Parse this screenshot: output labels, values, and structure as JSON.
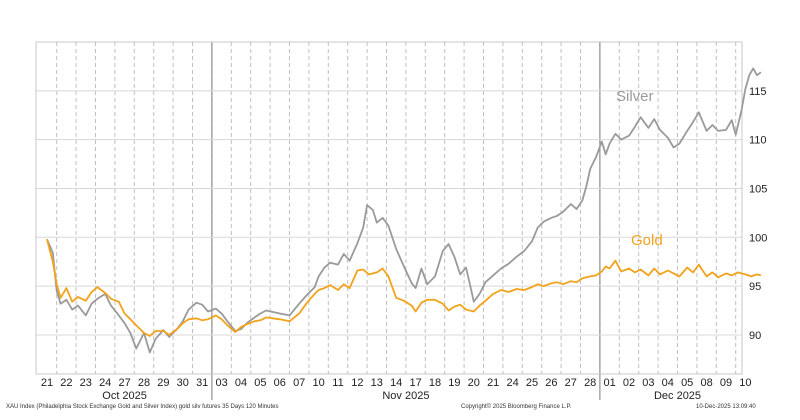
{
  "chart_data": {
    "type": "line",
    "ylim": [
      86,
      120
    ],
    "yticks": [
      90,
      95,
      100,
      105,
      110,
      115
    ],
    "grid": true,
    "legend": "inline",
    "x_days": [
      "21",
      "22",
      "23",
      "24",
      "27",
      "28",
      "29",
      "30",
      "31",
      "03",
      "04",
      "05",
      "06",
      "07",
      "10",
      "11",
      "12",
      "13",
      "14",
      "17",
      "18",
      "19",
      "20",
      "21",
      "24",
      "25",
      "26",
      "27",
      "28",
      "01",
      "02",
      "03",
      "04",
      "05",
      "08",
      "09",
      "10"
    ],
    "month_labels": [
      {
        "label": "Oct 2025",
        "first_day_index": 0,
        "last_day_index": 8
      },
      {
        "label": "Nov 2025",
        "first_day_index": 9,
        "last_day_index": 28
      },
      {
        "label": "Dec 2025",
        "first_day_index": 29,
        "last_day_index": 36
      }
    ],
    "series": [
      {
        "name": "Silver",
        "color": "#9a9a9a",
        "points": [
          [
            0,
            99.8
          ],
          [
            0.3,
            98.4
          ],
          [
            0.5,
            94.5
          ],
          [
            0.7,
            93.2
          ],
          [
            1.0,
            93.6
          ],
          [
            1.3,
            92.6
          ],
          [
            1.6,
            93.0
          ],
          [
            2.0,
            92.0
          ],
          [
            2.3,
            93.2
          ],
          [
            2.6,
            93.7
          ],
          [
            3.0,
            94.2
          ],
          [
            3.3,
            93.0
          ],
          [
            3.7,
            92.0
          ],
          [
            4.0,
            91.2
          ],
          [
            4.3,
            90.2
          ],
          [
            4.6,
            88.6
          ],
          [
            5.0,
            90.2
          ],
          [
            5.3,
            88.2
          ],
          [
            5.6,
            89.6
          ],
          [
            6.0,
            90.5
          ],
          [
            6.3,
            89.8
          ],
          [
            6.7,
            90.6
          ],
          [
            7.0,
            91.4
          ],
          [
            7.3,
            92.6
          ],
          [
            7.7,
            93.3
          ],
          [
            8.0,
            93.1
          ],
          [
            8.3,
            92.4
          ],
          [
            8.7,
            92.7
          ],
          [
            9.0,
            92.2
          ],
          [
            9.3,
            91.4
          ],
          [
            9.7,
            90.4
          ],
          [
            10.0,
            90.6
          ],
          [
            10.3,
            91.2
          ],
          [
            10.7,
            91.8
          ],
          [
            11.0,
            92.2
          ],
          [
            11.3,
            92.5
          ],
          [
            12.0,
            92.2
          ],
          [
            12.5,
            92.0
          ],
          [
            13.0,
            93.2
          ],
          [
            13.4,
            94.1
          ],
          [
            13.8,
            94.9
          ],
          [
            14.0,
            96.0
          ],
          [
            14.3,
            96.9
          ],
          [
            14.6,
            97.4
          ],
          [
            15.0,
            97.2
          ],
          [
            15.3,
            98.3
          ],
          [
            15.6,
            97.6
          ],
          [
            16.0,
            99.4
          ],
          [
            16.3,
            101.0
          ],
          [
            16.5,
            103.3
          ],
          [
            16.8,
            102.8
          ],
          [
            17.0,
            101.5
          ],
          [
            17.3,
            102.0
          ],
          [
            17.6,
            101.2
          ],
          [
            18.0,
            98.8
          ],
          [
            18.4,
            97.0
          ],
          [
            18.8,
            95.3
          ],
          [
            19.0,
            94.8
          ],
          [
            19.3,
            96.8
          ],
          [
            19.6,
            95.2
          ],
          [
            20.0,
            96.0
          ],
          [
            20.4,
            98.6
          ],
          [
            20.7,
            99.3
          ],
          [
            21.0,
            98.0
          ],
          [
            21.3,
            96.2
          ],
          [
            21.6,
            96.9
          ],
          [
            21.8,
            95.2
          ],
          [
            22.0,
            93.4
          ],
          [
            22.3,
            94.2
          ],
          [
            22.6,
            95.4
          ],
          [
            23.0,
            96.1
          ],
          [
            23.4,
            96.8
          ],
          [
            23.8,
            97.3
          ],
          [
            24.2,
            98.0
          ],
          [
            24.6,
            98.6
          ],
          [
            25.0,
            99.6
          ],
          [
            25.3,
            101.0
          ],
          [
            25.6,
            101.6
          ],
          [
            26.0,
            102.0
          ],
          [
            26.3,
            102.2
          ],
          [
            26.6,
            102.6
          ],
          [
            27.0,
            103.4
          ],
          [
            27.3,
            102.9
          ],
          [
            27.6,
            103.8
          ],
          [
            27.8,
            105.2
          ],
          [
            28.0,
            107.0
          ],
          [
            28.3,
            108.2
          ],
          [
            28.6,
            109.8
          ],
          [
            28.8,
            108.5
          ],
          [
            29.0,
            109.6
          ],
          [
            29.3,
            110.6
          ],
          [
            29.6,
            110.0
          ],
          [
            30.0,
            110.4
          ],
          [
            30.3,
            111.3
          ],
          [
            30.6,
            112.3
          ],
          [
            31.0,
            111.2
          ],
          [
            31.3,
            112.1
          ],
          [
            31.6,
            111.0
          ],
          [
            32.0,
            110.2
          ],
          [
            32.3,
            109.2
          ],
          [
            32.6,
            109.6
          ],
          [
            33.0,
            110.9
          ],
          [
            33.3,
            111.8
          ],
          [
            33.6,
            112.8
          ],
          [
            34.0,
            110.9
          ],
          [
            34.3,
            111.5
          ],
          [
            34.6,
            110.9
          ],
          [
            35.0,
            111.0
          ],
          [
            35.3,
            112.0
          ],
          [
            35.5,
            110.5
          ],
          [
            35.8,
            113.0
          ],
          [
            36.0,
            115.2
          ],
          [
            36.2,
            116.6
          ],
          [
            36.4,
            117.3
          ],
          [
            36.6,
            116.6
          ],
          [
            36.8,
            116.9
          ]
        ]
      },
      {
        "name": "Gold",
        "color": "#f2a21b",
        "points": [
          [
            0,
            99.8
          ],
          [
            0.3,
            97.5
          ],
          [
            0.5,
            95.2
          ],
          [
            0.7,
            93.8
          ],
          [
            1.0,
            94.8
          ],
          [
            1.3,
            93.4
          ],
          [
            1.6,
            93.9
          ],
          [
            2.0,
            93.5
          ],
          [
            2.3,
            94.4
          ],
          [
            2.6,
            94.9
          ],
          [
            3.0,
            94.3
          ],
          [
            3.3,
            93.7
          ],
          [
            3.7,
            93.4
          ],
          [
            4.0,
            92.2
          ],
          [
            4.3,
            91.6
          ],
          [
            4.6,
            91.0
          ],
          [
            5.0,
            90.2
          ],
          [
            5.3,
            89.9
          ],
          [
            5.6,
            90.4
          ],
          [
            6.0,
            90.4
          ],
          [
            6.3,
            90.0
          ],
          [
            6.7,
            90.6
          ],
          [
            7.0,
            91.2
          ],
          [
            7.3,
            91.6
          ],
          [
            7.7,
            91.7
          ],
          [
            8.0,
            91.5
          ],
          [
            8.3,
            91.6
          ],
          [
            8.7,
            92.0
          ],
          [
            9.0,
            91.6
          ],
          [
            9.3,
            91.0
          ],
          [
            9.7,
            90.3
          ],
          [
            10.0,
            90.8
          ],
          [
            10.3,
            91.1
          ],
          [
            10.7,
            91.4
          ],
          [
            11.0,
            91.5
          ],
          [
            11.3,
            91.8
          ],
          [
            12.0,
            91.6
          ],
          [
            12.5,
            91.4
          ],
          [
            13.0,
            92.2
          ],
          [
            13.4,
            93.3
          ],
          [
            13.8,
            94.2
          ],
          [
            14.0,
            94.6
          ],
          [
            14.3,
            94.8
          ],
          [
            14.6,
            95.1
          ],
          [
            15.0,
            94.6
          ],
          [
            15.3,
            95.2
          ],
          [
            15.6,
            94.8
          ],
          [
            16.0,
            96.6
          ],
          [
            16.3,
            96.7
          ],
          [
            16.6,
            96.2
          ],
          [
            17.0,
            96.4
          ],
          [
            17.3,
            96.8
          ],
          [
            17.6,
            96.0
          ],
          [
            18.0,
            93.8
          ],
          [
            18.4,
            93.5
          ],
          [
            18.8,
            93.0
          ],
          [
            19.0,
            92.4
          ],
          [
            19.3,
            93.3
          ],
          [
            19.6,
            93.6
          ],
          [
            20.0,
            93.6
          ],
          [
            20.4,
            93.2
          ],
          [
            20.7,
            92.5
          ],
          [
            21.0,
            92.9
          ],
          [
            21.3,
            93.1
          ],
          [
            21.6,
            92.6
          ],
          [
            22.0,
            92.4
          ],
          [
            22.3,
            93.0
          ],
          [
            22.6,
            93.5
          ],
          [
            23.0,
            94.2
          ],
          [
            23.4,
            94.6
          ],
          [
            23.8,
            94.4
          ],
          [
            24.2,
            94.7
          ],
          [
            24.6,
            94.6
          ],
          [
            25.0,
            94.9
          ],
          [
            25.3,
            95.2
          ],
          [
            25.6,
            95.0
          ],
          [
            26.0,
            95.3
          ],
          [
            26.3,
            95.4
          ],
          [
            26.6,
            95.2
          ],
          [
            27.0,
            95.5
          ],
          [
            27.3,
            95.4
          ],
          [
            27.6,
            95.8
          ],
          [
            28.0,
            96.0
          ],
          [
            28.3,
            96.1
          ],
          [
            28.6,
            96.5
          ],
          [
            28.8,
            97.0
          ],
          [
            29.0,
            96.8
          ],
          [
            29.3,
            97.6
          ],
          [
            29.6,
            96.5
          ],
          [
            30.0,
            96.8
          ],
          [
            30.3,
            96.4
          ],
          [
            30.6,
            96.7
          ],
          [
            31.0,
            96.1
          ],
          [
            31.3,
            96.8
          ],
          [
            31.6,
            96.2
          ],
          [
            32.0,
            96.6
          ],
          [
            32.3,
            96.3
          ],
          [
            32.6,
            96.0
          ],
          [
            33.0,
            96.9
          ],
          [
            33.3,
            96.4
          ],
          [
            33.6,
            97.2
          ],
          [
            34.0,
            96.0
          ],
          [
            34.3,
            96.4
          ],
          [
            34.6,
            95.9
          ],
          [
            35.0,
            96.3
          ],
          [
            35.3,
            96.1
          ],
          [
            35.6,
            96.4
          ],
          [
            36.0,
            96.2
          ],
          [
            36.3,
            96.0
          ],
          [
            36.6,
            96.2
          ],
          [
            36.8,
            96.1
          ]
        ]
      }
    ]
  },
  "footer": {
    "left": "XAU Index (Philadelphia Stock Exchange Gold and Silver Index) gold silv futures 35 Days 120 Minutes",
    "center": "Copyright© 2025 Bloomberg Finance L.P.",
    "right": "10-Dec-2025 13:09:40"
  }
}
